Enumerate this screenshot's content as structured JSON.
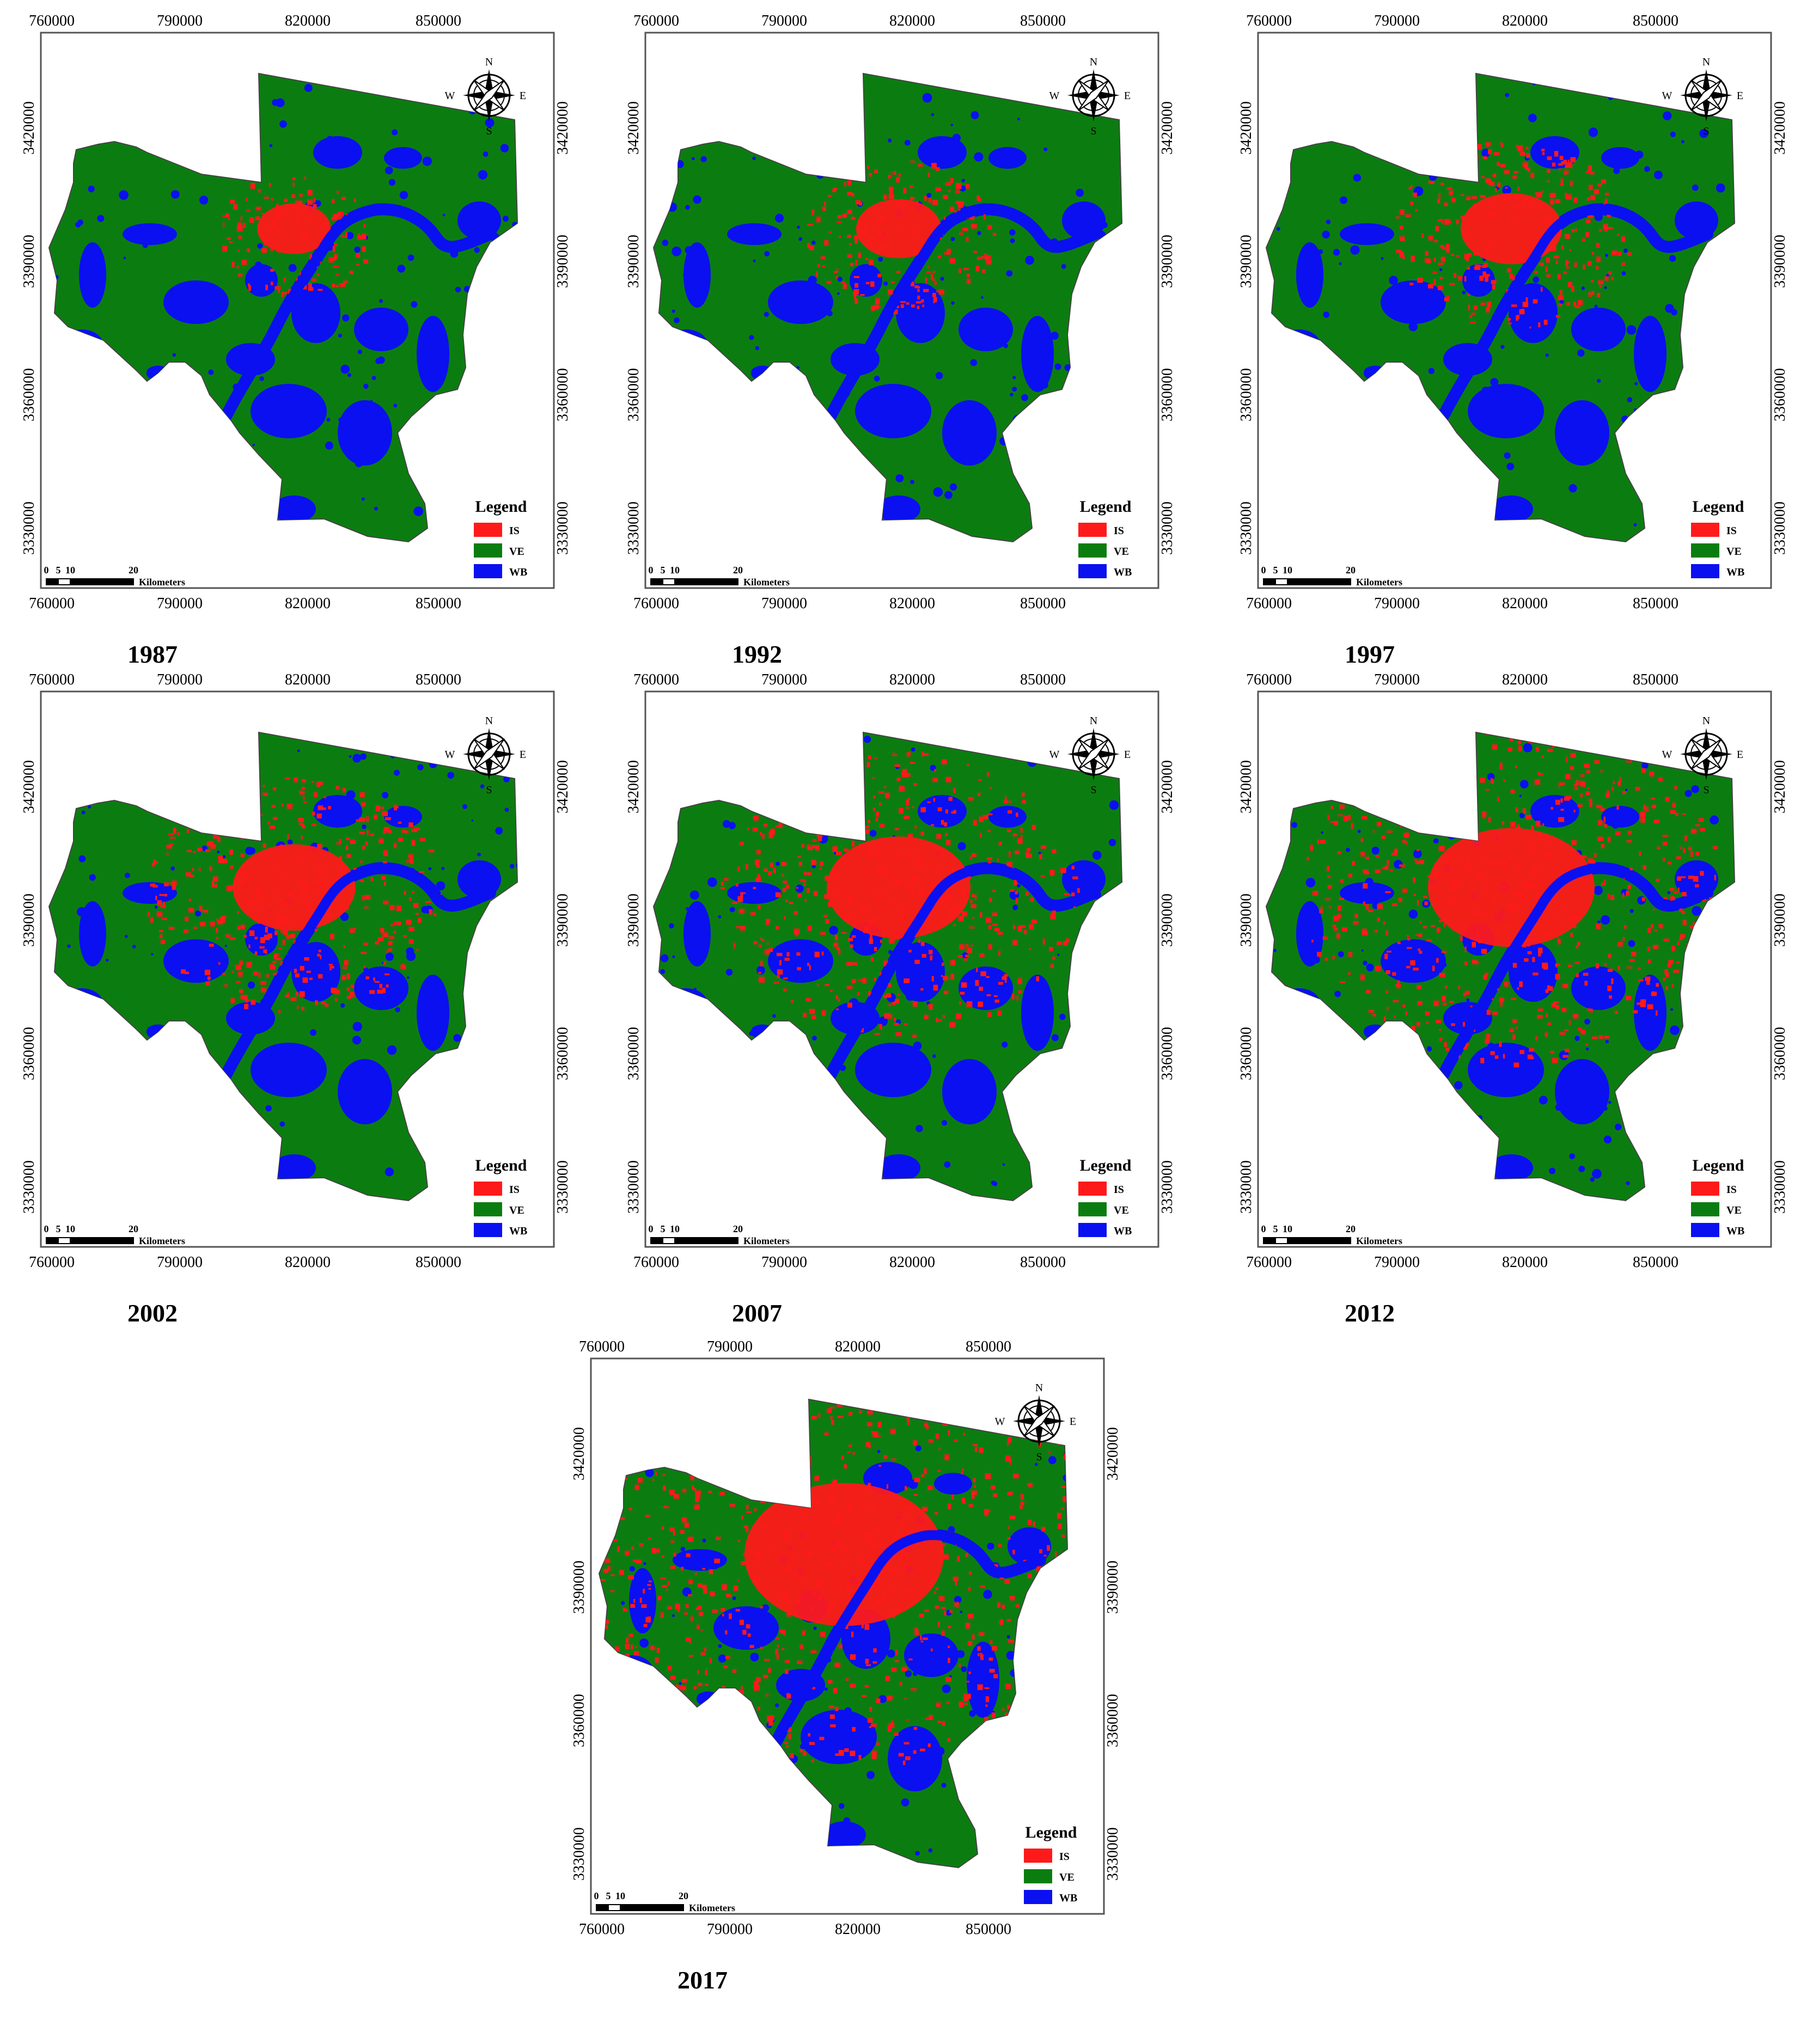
{
  "colors": {
    "IS": "#ff1a1a",
    "VE": "#0b7d10",
    "WB": "#0a10f0",
    "border": "#444444"
  },
  "axes": {
    "x_ticks": [
      "760000",
      "790000",
      "820000",
      "850000"
    ],
    "y_ticks": [
      "3420000",
      "3390000",
      "3360000",
      "3330000"
    ]
  },
  "compass": {
    "n": "N",
    "s": "S",
    "e": "E",
    "w": "W"
  },
  "scalebar": {
    "labels": [
      "0",
      "5",
      "10",
      "20"
    ],
    "unit": "Kilometers"
  },
  "legend": {
    "title": "Legend",
    "items": [
      {
        "code": "IS",
        "color": "#ff1a1a"
      },
      {
        "code": "VE",
        "color": "#0b7d10"
      },
      {
        "code": "WB",
        "color": "#0a10f0"
      }
    ]
  },
  "maps": [
    {
      "year": "1987",
      "is_level": 0.15
    },
    {
      "year": "1992",
      "is_level": 0.22
    },
    {
      "year": "1997",
      "is_level": 0.32
    },
    {
      "year": "2002",
      "is_level": 0.45
    },
    {
      "year": "2007",
      "is_level": 0.58
    },
    {
      "year": "2012",
      "is_level": 0.72
    },
    {
      "year": "2017",
      "is_level": 0.92
    }
  ]
}
